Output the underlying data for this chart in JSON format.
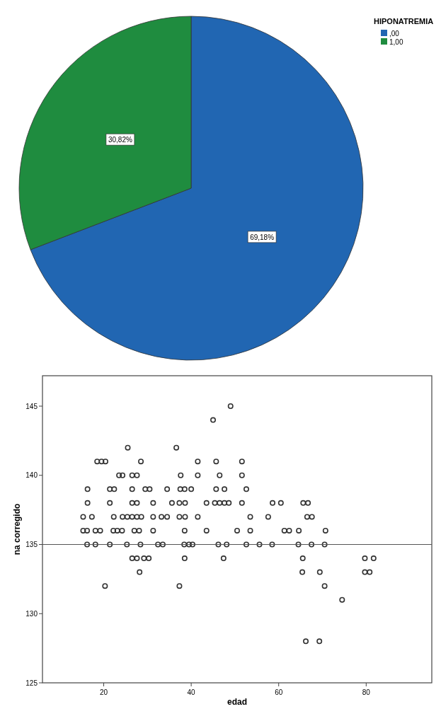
{
  "chart_data": [
    {
      "type": "pie",
      "legend_title": "HIPONATREMIA",
      "legend": "top right",
      "categories": [
        ",00",
        "1,00"
      ],
      "values": [
        69.18,
        30.82
      ],
      "colors": [
        "#2166b2",
        "#1f8c3f"
      ],
      "value_labels": [
        "69,18%",
        "30,82%"
      ]
    },
    {
      "type": "scatter",
      "xlabel": "edad",
      "ylabel": "na corregido",
      "xlim": [
        6,
        95
      ],
      "ylim": [
        125,
        147.2
      ],
      "xticks": [
        20,
        40,
        60,
        80
      ],
      "yticks": [
        125,
        130,
        135,
        140,
        145
      ],
      "marker": "circle",
      "grid": false,
      "ref_lines": [
        {
          "axis": "y",
          "value": 135,
          "color": "#555555"
        }
      ],
      "series": [
        {
          "color": "#333333",
          "x": [
            49,
            45,
            25.5,
            36.6,
            18.5,
            19.5,
            20.4,
            28.5,
            41.5,
            45.7,
            51.6,
            23.5,
            24.3,
            26.5,
            27.6,
            37.6,
            41.5,
            46.5,
            51.6,
            16.3,
            21.4,
            22.4,
            26.5,
            29.5,
            30.5,
            34.5,
            37.5,
            38.5,
            40,
            45.7,
            47.6,
            52.6,
            16.3,
            21.4,
            26.5,
            27.6,
            31.3,
            35.6,
            37.3,
            38.6,
            43.5,
            45.4,
            46.5,
            47.6,
            48.6,
            51.6,
            58.6,
            60.5,
            65.6,
            66.7,
            15.3,
            17.3,
            22.3,
            24.3,
            25.4,
            26.5,
            27.6,
            28.6,
            31.3,
            33.2,
            34.5,
            37.3,
            38.6,
            41.5,
            53.5,
            57.6,
            66.5,
            67.6,
            15.3,
            16.2,
            18.1,
            19.2,
            22.2,
            23.1,
            24.2,
            27,
            28.1,
            31.3,
            38.5,
            43.5,
            50.5,
            53.5,
            61.3,
            62.4,
            64.6,
            70.7,
            16.2,
            18.1,
            21.4,
            25.3,
            28.4,
            32.4,
            33.5,
            38.4,
            39.5,
            40.3,
            46.2,
            48.1,
            52.6,
            55.6,
            58.5,
            64.5,
            67.5,
            70.5,
            26.5,
            27.6,
            29.2,
            30.3,
            38.5,
            47.4,
            65.5,
            79.7,
            81.7,
            28.2,
            65.4,
            69.4,
            79.7,
            80.8,
            20.3,
            37.3,
            70.5,
            74.5,
            66.2,
            69.3
          ],
          "values": [
            145,
            144,
            142,
            142,
            141,
            141,
            141,
            141,
            141,
            141,
            141,
            140,
            140,
            140,
            140,
            140,
            140,
            140,
            140,
            139,
            139,
            139,
            139,
            139,
            139,
            139,
            139,
            139,
            139,
            139,
            139,
            139,
            138,
            138,
            138,
            138,
            138,
            138,
            138,
            138,
            138,
            138,
            138,
            138,
            138,
            138,
            138,
            138,
            138,
            138,
            137,
            137,
            137,
            137,
            137,
            137,
            137,
            137,
            137,
            137,
            137,
            137,
            137,
            137,
            137,
            137,
            137,
            137,
            136,
            136,
            136,
            136,
            136,
            136,
            136,
            136,
            136,
            136,
            136,
            136,
            136,
            136,
            136,
            136,
            136,
            136,
            135,
            135,
            135,
            135,
            135,
            135,
            135,
            135,
            135,
            135,
            135,
            135,
            135,
            135,
            135,
            135,
            135,
            135,
            134,
            134,
            134,
            134,
            134,
            134,
            134,
            134,
            134,
            133,
            133,
            133,
            133,
            133,
            132,
            132,
            132,
            131,
            128,
            128
          ]
        }
      ]
    }
  ]
}
